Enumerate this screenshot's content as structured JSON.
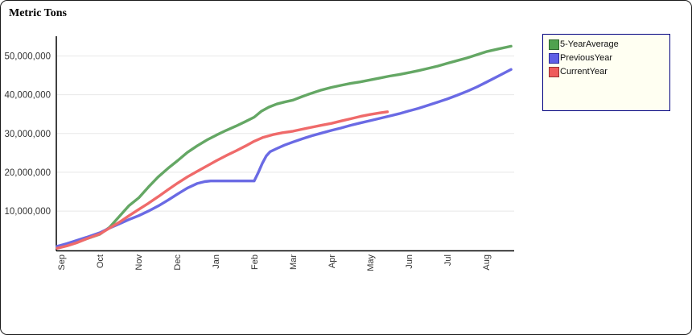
{
  "panel": {
    "title": "Metric Tons"
  },
  "colors": {
    "axis": "#000000",
    "grid": "#E8E8E8",
    "tick_text": "#333333",
    "legend_bg": "#FFFFF2",
    "legend_border": "#000080",
    "series_green": "#64A764",
    "series_blue": "#6A6AE4",
    "series_red": "#EF6A6A"
  },
  "chart_data": {
    "type": "line",
    "title": "Metric Tons",
    "unit": "metric tons",
    "grid": "horizontal",
    "legend_position": "top-right",
    "x_unit": "months from Sep (marketing year)",
    "x_categories": [
      "Sep",
      "Oct",
      "Nov",
      "Dec",
      "Jan",
      "Feb",
      "Mar",
      "Apr",
      "May",
      "Jun",
      "Jul",
      "Aug"
    ],
    "xlim_months": [
      0,
      11.7
    ],
    "ylim": [
      0,
      55000000
    ],
    "yticks": {
      "values": [
        10000000,
        20000000,
        30000000,
        40000000,
        50000000
      ],
      "labels": [
        "10,000,000",
        "20,000,000",
        "30,000,000",
        "40,000,000",
        "50,000,000"
      ]
    },
    "series": [
      {
        "name": "5-YearAverage",
        "color": "#64A764",
        "swatch_fill": "#4FA24F",
        "swatch_border": "#2D672D",
        "points": [
          [
            0,
            600000
          ],
          [
            0.25,
            1200000
          ],
          [
            0.5,
            1900000
          ],
          [
            0.75,
            2800000
          ],
          [
            1.1,
            4000000
          ],
          [
            1.35,
            5800000
          ],
          [
            1.6,
            8600000
          ],
          [
            1.85,
            11400000
          ],
          [
            2.1,
            13400000
          ],
          [
            2.35,
            16200000
          ],
          [
            2.6,
            18800000
          ],
          [
            2.85,
            21000000
          ],
          [
            3.1,
            23000000
          ],
          [
            3.35,
            25100000
          ],
          [
            3.6,
            26800000
          ],
          [
            3.85,
            28300000
          ],
          [
            4.1,
            29600000
          ],
          [
            4.35,
            30800000
          ],
          [
            4.6,
            31900000
          ],
          [
            4.85,
            33100000
          ],
          [
            5.07,
            34200000
          ],
          [
            5.25,
            35700000
          ],
          [
            5.45,
            36800000
          ],
          [
            5.65,
            37600000
          ],
          [
            5.85,
            38100000
          ],
          [
            6.07,
            38600000
          ],
          [
            6.3,
            39500000
          ],
          [
            6.55,
            40400000
          ],
          [
            6.8,
            41200000
          ],
          [
            7.06,
            41900000
          ],
          [
            7.3,
            42400000
          ],
          [
            7.55,
            42900000
          ],
          [
            7.8,
            43300000
          ],
          [
            8.05,
            43800000
          ],
          [
            8.3,
            44300000
          ],
          [
            8.55,
            44800000
          ],
          [
            8.8,
            45200000
          ],
          [
            9.05,
            45700000
          ],
          [
            9.3,
            46200000
          ],
          [
            9.55,
            46800000
          ],
          [
            9.8,
            47400000
          ],
          [
            10.04,
            48100000
          ],
          [
            10.3,
            48800000
          ],
          [
            10.55,
            49500000
          ],
          [
            10.8,
            50300000
          ],
          [
            11.04,
            51100000
          ],
          [
            11.35,
            51800000
          ],
          [
            11.68,
            52500000
          ]
        ]
      },
      {
        "name": "PreviousYear",
        "color": "#6A6AE4",
        "swatch_fill": "#5F5FE6",
        "swatch_border": "#2C2C99",
        "points": [
          [
            0,
            900000
          ],
          [
            0.25,
            1600000
          ],
          [
            0.5,
            2400000
          ],
          [
            0.75,
            3200000
          ],
          [
            1.1,
            4400000
          ],
          [
            1.35,
            5600000
          ],
          [
            1.6,
            6700000
          ],
          [
            1.85,
            7800000
          ],
          [
            2.1,
            8800000
          ],
          [
            2.35,
            10000000
          ],
          [
            2.6,
            11300000
          ],
          [
            2.85,
            12800000
          ],
          [
            3.1,
            14400000
          ],
          [
            3.35,
            15900000
          ],
          [
            3.6,
            17100000
          ],
          [
            3.8,
            17600000
          ],
          [
            3.95,
            17750000
          ],
          [
            5.07,
            17750000
          ],
          [
            5.17,
            19800000
          ],
          [
            5.28,
            22300000
          ],
          [
            5.38,
            24200000
          ],
          [
            5.48,
            25300000
          ],
          [
            5.65,
            26100000
          ],
          [
            5.85,
            27000000
          ],
          [
            6.07,
            27800000
          ],
          [
            6.3,
            28600000
          ],
          [
            6.55,
            29400000
          ],
          [
            6.8,
            30100000
          ],
          [
            7.06,
            30800000
          ],
          [
            7.3,
            31400000
          ],
          [
            7.55,
            32100000
          ],
          [
            7.8,
            32700000
          ],
          [
            8.05,
            33300000
          ],
          [
            8.3,
            33900000
          ],
          [
            8.55,
            34500000
          ],
          [
            8.8,
            35100000
          ],
          [
            9.05,
            35800000
          ],
          [
            9.3,
            36500000
          ],
          [
            9.55,
            37300000
          ],
          [
            9.8,
            38100000
          ],
          [
            10.04,
            38900000
          ],
          [
            10.3,
            39900000
          ],
          [
            10.55,
            40900000
          ],
          [
            10.8,
            42000000
          ],
          [
            11.04,
            43200000
          ],
          [
            11.35,
            44800000
          ],
          [
            11.68,
            46500000
          ]
        ]
      },
      {
        "name": "CurrentYear",
        "color": "#EF6A6A",
        "swatch_fill": "#EF5C5C",
        "swatch_border": "#993333",
        "points": [
          [
            0,
            400000
          ],
          [
            0.25,
            1000000
          ],
          [
            0.5,
            1800000
          ],
          [
            0.75,
            2800000
          ],
          [
            1.1,
            4100000
          ],
          [
            1.35,
            5600000
          ],
          [
            1.6,
            7100000
          ],
          [
            1.85,
            8800000
          ],
          [
            2.1,
            10400000
          ],
          [
            2.35,
            12000000
          ],
          [
            2.6,
            13700000
          ],
          [
            2.85,
            15500000
          ],
          [
            3.1,
            17200000
          ],
          [
            3.35,
            18800000
          ],
          [
            3.6,
            20200000
          ],
          [
            3.85,
            21600000
          ],
          [
            4.1,
            23000000
          ],
          [
            4.35,
            24300000
          ],
          [
            4.6,
            25500000
          ],
          [
            4.85,
            26800000
          ],
          [
            5.07,
            28000000
          ],
          [
            5.3,
            29000000
          ],
          [
            5.55,
            29700000
          ],
          [
            5.8,
            30200000
          ],
          [
            6.07,
            30600000
          ],
          [
            6.3,
            31100000
          ],
          [
            6.55,
            31600000
          ],
          [
            6.8,
            32100000
          ],
          [
            7.06,
            32600000
          ],
          [
            7.3,
            33200000
          ],
          [
            7.55,
            33800000
          ],
          [
            7.8,
            34400000
          ],
          [
            8.05,
            34900000
          ],
          [
            8.3,
            35300000
          ],
          [
            8.5,
            35600000
          ]
        ]
      }
    ]
  }
}
